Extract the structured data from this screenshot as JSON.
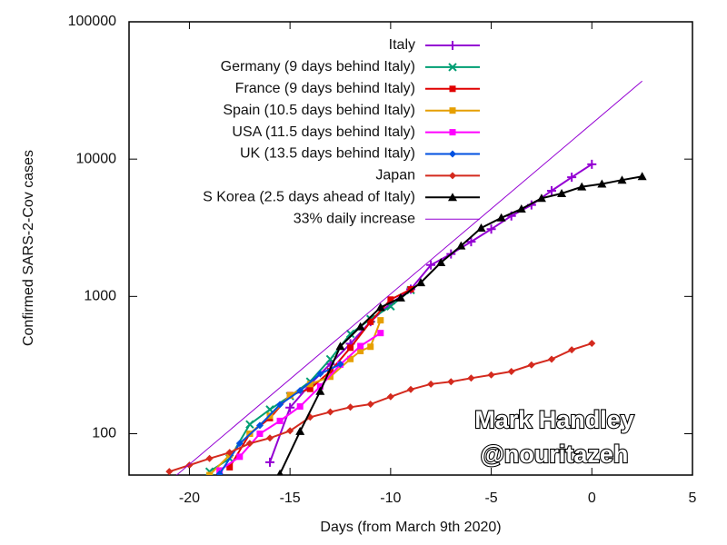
{
  "chart_data": {
    "type": "line",
    "xlabel": "Days (from March 9th 2020)",
    "ylabel": "Confirmed SARS-2-Cov cases",
    "xlim": [
      -23,
      5
    ],
    "xticks": [
      -20,
      -15,
      -10,
      -5,
      0,
      5
    ],
    "ylim": [
      50,
      100000
    ],
    "yticks": [
      100,
      1000,
      10000,
      100000
    ],
    "log_y": true,
    "legend": "top",
    "annotations": [
      "Mark Handley",
      "@nouritazeh"
    ],
    "series": [
      {
        "name": "Italy",
        "color": "#9400d3",
        "marker": "plus",
        "x": [
          -16,
          -15,
          -14,
          -13,
          -12,
          -11,
          -10,
          -9,
          -8,
          -7,
          -6,
          -5,
          -4,
          -3,
          -2,
          -1,
          0
        ],
        "values": [
          62,
          155,
          229,
          322,
          453,
          655,
          888,
          1128,
          1694,
          2036,
          2502,
          3089,
          3858,
          4636,
          5883,
          7375,
          9172
        ]
      },
      {
        "name": "Germany (9 days behind Italy)",
        "color": "#009e73",
        "marker": "cross",
        "x": [
          -19,
          -18,
          -17,
          -16,
          -15,
          -14,
          -13,
          -12,
          -11,
          -10,
          -9
        ],
        "values": [
          53,
          66,
          117,
          150,
          188,
          240,
          349,
          534,
          684,
          847,
          1112
        ]
      },
      {
        "name": "France (9 days behind Italy)",
        "color": "#e00000",
        "marker": "square",
        "x": [
          -18,
          -17,
          -16,
          -15,
          -14,
          -13,
          -12,
          -11,
          -10,
          -9
        ],
        "values": [
          57,
          100,
          130,
          191,
          212,
          285,
          423,
          653,
          949,
          1126
        ]
      },
      {
        "name": "Spain (10.5 days behind Italy)",
        "color": "#e69f00",
        "marker": "square",
        "x": [
          -19,
          -18,
          -17,
          -16,
          -15,
          -14,
          -13,
          -12,
          -11.5,
          -11,
          -10.5
        ],
        "values": [
          50,
          70,
          100,
          135,
          190,
          230,
          260,
          350,
          400,
          430,
          670
        ]
      },
      {
        "name": "USA (11.5 days behind Italy)",
        "color": "#ff00ff",
        "marker": "square",
        "x": [
          -18.5,
          -17.5,
          -16.5,
          -15.5,
          -14.5,
          -13.5,
          -12.5,
          -11.5,
          -10.5
        ],
        "values": [
          54,
          68,
          100,
          124,
          158,
          221,
          319,
          435,
          541
        ]
      },
      {
        "name": "UK (13.5 days behind Italy)",
        "color": "#0050e0",
        "marker": "diamond",
        "x": [
          -18.5,
          -17.5,
          -16.5,
          -15.5,
          -14.5,
          -13.5,
          -12.5
        ],
        "values": [
          51,
          85,
          115,
          163,
          206,
          273,
          321
        ]
      },
      {
        "name": "Japan",
        "color": "#d42a1e",
        "marker": "diamond",
        "x": [
          -21,
          -20,
          -19,
          -18,
          -17,
          -16,
          -15,
          -14,
          -13,
          -12,
          -11,
          -10,
          -9,
          -8,
          -7,
          -6,
          -5,
          -4,
          -3,
          -2,
          -1,
          0
        ],
        "values": [
          53,
          59,
          66,
          73,
          85,
          93,
          105,
          132,
          144,
          156,
          164,
          186,
          210,
          230,
          239,
          254,
          268,
          284,
          317,
          349,
          408,
          455
        ]
      },
      {
        "name": "S Korea (2.5 days ahead of Italy)",
        "color": "#000000",
        "marker": "triangle",
        "x": [
          -15.5,
          -14.5,
          -13.5,
          -12.5,
          -11.5,
          -10.5,
          -9.5,
          -8.5,
          -7.5,
          -6.5,
          -5.5,
          -4.5,
          -3.5,
          -2.5,
          -1.5,
          -0.5,
          0.5,
          1.5,
          2.5
        ],
        "values": [
          51,
          104,
          204,
          433,
          602,
          833,
          977,
          1261,
          1766,
          2337,
          3150,
          3736,
          4335,
          5186,
          5621,
          6284,
          6593,
          7041,
          7478
        ]
      },
      {
        "name": "33% daily increase",
        "color": "#9400d3",
        "marker": "none",
        "x": [
          -21,
          2.5
        ],
        "values": [
          45,
          37000
        ]
      }
    ]
  }
}
